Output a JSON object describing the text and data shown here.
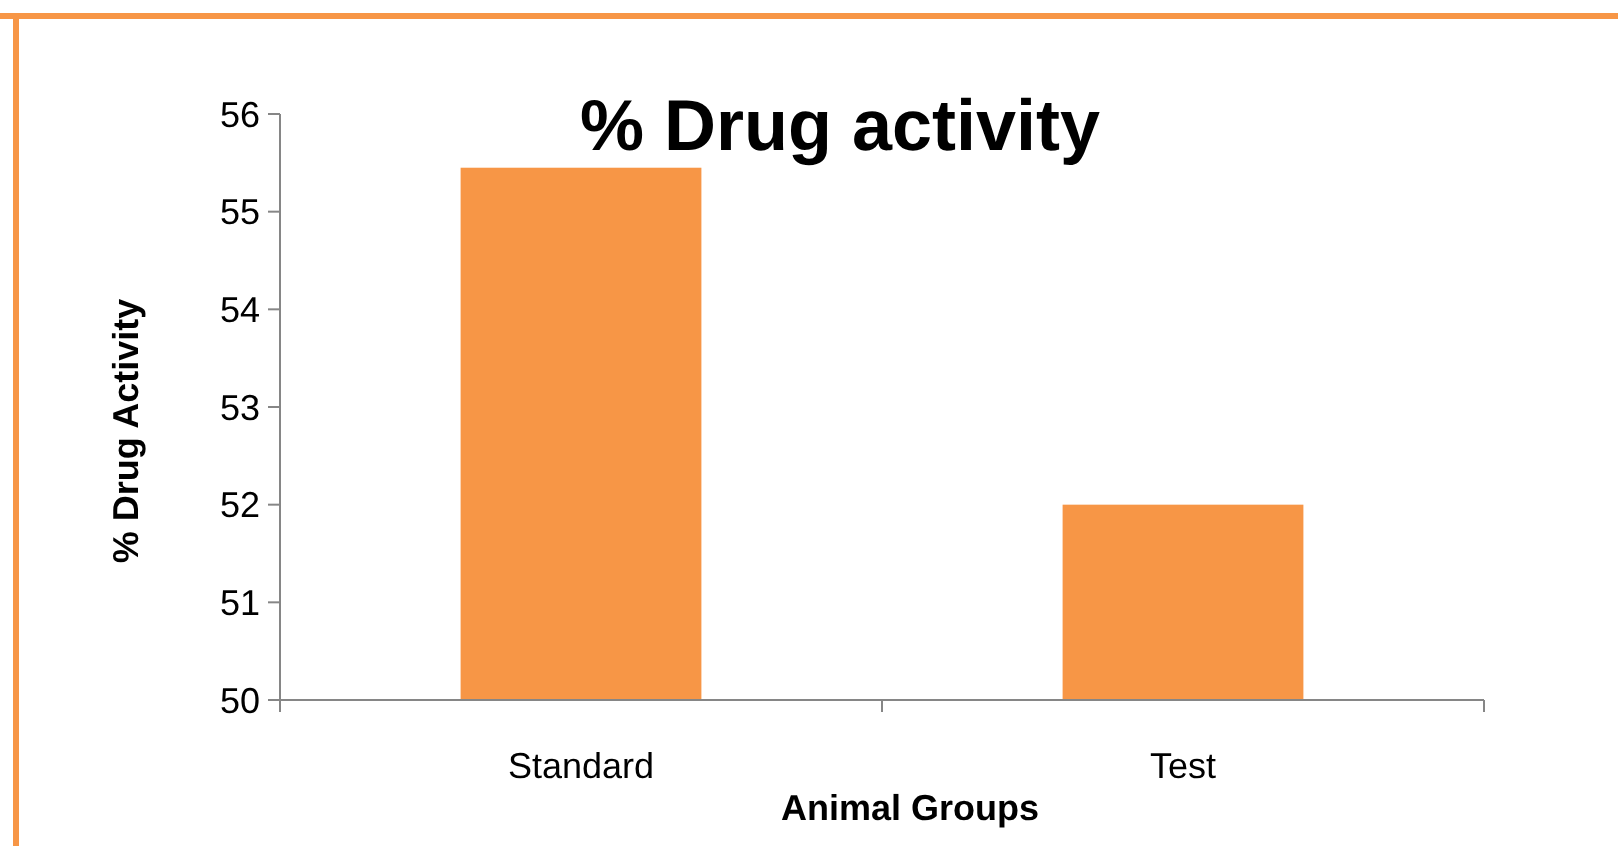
{
  "chart_data": {
    "type": "bar",
    "title": "% Drug activity",
    "xlabel": "Animal Groups",
    "ylabel": "% Drug Activity",
    "categories": [
      "Standard",
      "Test"
    ],
    "values": [
      55.45,
      52.0
    ],
    "color": "#f79646",
    "ylim": [
      50,
      56
    ],
    "yticks": [
      50,
      51,
      52,
      53,
      54,
      55,
      56
    ],
    "grid": false
  }
}
